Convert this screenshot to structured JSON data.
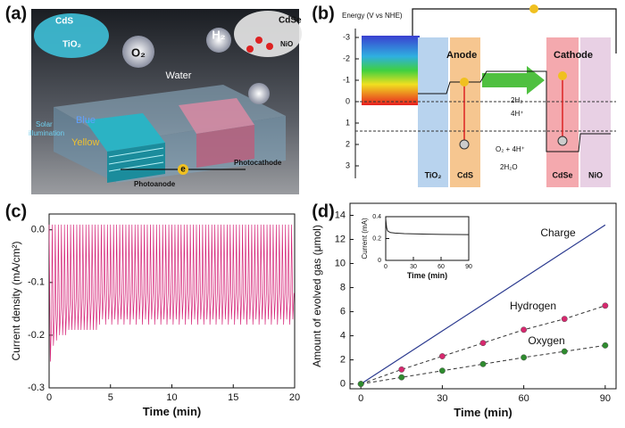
{
  "panel_a": {
    "label": "(a)",
    "cds": "CdS",
    "tio2": "TiO₂",
    "o2": "O₂",
    "h2": "H₂",
    "water": "Water",
    "cdse": "CdSe",
    "nio": "NiO",
    "solar": "Solar",
    "illumination": "illumination",
    "blue": "Blue",
    "yellow": "Yellow",
    "electron": "e",
    "photoanode": "Photoanode",
    "photocathode": "Photocathode"
  },
  "panel_b": {
    "label": "(b)",
    "energy_axis": {
      "label": "Energy (V vs NHE)",
      "ticks": [
        -3,
        -2,
        -1,
        0,
        1,
        2,
        3
      ]
    },
    "anode": "Anode",
    "cathode": "Cathode",
    "h2": "2H₂",
    "h_plus": "4H⁺",
    "o2": "O₂ + 4H⁺",
    "water": "2H₂O",
    "tio2": "TiO₂",
    "cds": "CdS",
    "cdse": "CdSe",
    "nio": "NiO"
  },
  "chart_data": [
    {
      "type": "line",
      "panel_label": "(c)",
      "xlabel": "Time (min)",
      "ylabel": "Current density (mA/cm²)",
      "xlim": [
        0,
        20
      ],
      "ylim": [
        -0.3,
        0.03
      ],
      "xticks": [
        0,
        5,
        10,
        15,
        20
      ],
      "yticks": [
        {
          "value": 0,
          "label": "0.0"
        },
        -0.1,
        -0.2,
        -0.3
      ],
      "x": [
        0,
        0.1,
        0.2,
        0.25,
        0.35,
        0.45,
        0.5,
        0.6,
        0.7,
        0.75,
        0.85,
        0.95,
        1,
        1.1,
        1.2,
        1.25,
        1.35,
        1.45,
        1.5,
        1.6,
        1.7,
        1.75,
        1.85,
        1.95,
        2,
        2.1,
        2.2,
        2.25,
        2.35,
        2.45,
        2.5,
        2.6,
        2.7,
        2.75,
        2.85,
        2.95,
        3,
        3.1,
        3.2,
        3.25,
        3.35,
        3.45,
        3.5,
        3.6,
        3.7,
        3.75,
        3.85,
        3.95,
        4,
        4.1,
        4.2,
        4.25,
        4.35,
        4.45,
        4.5,
        4.6,
        4.7,
        4.75,
        4.85,
        4.95,
        5,
        5.1,
        5.2,
        5.25,
        5.35,
        5.45,
        5.5,
        5.6,
        5.7,
        5.75,
        5.85,
        5.95,
        6,
        6.1,
        6.2,
        6.25,
        6.35,
        6.45,
        6.5,
        6.6,
        6.7,
        6.75,
        6.85,
        6.95,
        7,
        7.1,
        7.2,
        7.25,
        7.35,
        7.45,
        7.5,
        7.6,
        7.7,
        7.75,
        7.85,
        7.95,
        8,
        8.1,
        8.2,
        8.25,
        8.35,
        8.45,
        8.5,
        8.6,
        8.7,
        8.75,
        8.85,
        8.95,
        9,
        9.1,
        9.2,
        9.25,
        9.35,
        9.45,
        9.5,
        9.6,
        9.7,
        9.75,
        9.85,
        9.95,
        10,
        10.1,
        10.2,
        10.25,
        10.35,
        10.45,
        10.5,
        10.6,
        10.7,
        10.75,
        10.85,
        10.95,
        11,
        11.1,
        11.2,
        11.25,
        11.35,
        11.45,
        11.5,
        11.6,
        11.7,
        11.75,
        11.85,
        11.95,
        12,
        12.1,
        12.2,
        12.25,
        12.35,
        12.45,
        12.5,
        12.6,
        12.7,
        12.75,
        12.85,
        12.95,
        13,
        13.1,
        13.2,
        13.25,
        13.35,
        13.45,
        13.5,
        13.6,
        13.7,
        13.75,
        13.85,
        13.95,
        14,
        14.1,
        14.2,
        14.25,
        14.35,
        14.45,
        14.5,
        14.6,
        14.7,
        14.75,
        14.85,
        14.95,
        15,
        15.1,
        15.2,
        15.25,
        15.35,
        15.45,
        15.5,
        15.6,
        15.7,
        15.75,
        15.85,
        15.95,
        16,
        16.1,
        16.2,
        16.25,
        16.35,
        16.45,
        16.5,
        16.6,
        16.7,
        16.75,
        16.85,
        16.95,
        17,
        17.1,
        17.2,
        17.25,
        17.35,
        17.45,
        17.5,
        17.6,
        17.7,
        17.75,
        17.85,
        17.95,
        18,
        18.1,
        18.2,
        18.25,
        18.35,
        18.45,
        18.5,
        18.6,
        18.7,
        18.75,
        18.85,
        18.95,
        19,
        19.1,
        19.2,
        19.25,
        19.35,
        19.45,
        19.5,
        19.6,
        19.7,
        19.75,
        19.85,
        19.95
      ],
      "series": [
        {
          "color": "#d6287a",
          "line_style": "solid",
          "markers": false,
          "values": [
            0.01,
            -0.25,
            -0.17,
            0.01,
            -0.22,
            -0.16,
            0.01,
            -0.21,
            -0.15,
            0.01,
            -0.2,
            -0.15,
            0.01,
            -0.2,
            -0.14,
            0.01,
            -0.2,
            -0.14,
            0.01,
            -0.19,
            -0.14,
            0.01,
            -0.19,
            -0.13,
            0.01,
            -0.19,
            -0.13,
            0.01,
            -0.19,
            -0.13,
            0.01,
            -0.19,
            -0.13,
            0.01,
            -0.19,
            -0.13,
            0.01,
            -0.19,
            -0.13,
            0.01,
            -0.19,
            -0.13,
            0.01,
            -0.19,
            -0.13,
            0.01,
            -0.19,
            -0.13,
            0.01,
            -0.18,
            -0.12,
            0.01,
            -0.17,
            -0.12,
            0.01,
            -0.18,
            -0.12,
            0.01,
            -0.17,
            -0.12,
            0.01,
            -0.18,
            -0.12,
            0.01,
            -0.17,
            -0.12,
            0.01,
            -0.18,
            -0.12,
            0.01,
            -0.17,
            -0.12,
            0.01,
            -0.18,
            -0.12,
            0.01,
            -0.17,
            -0.12,
            0.01,
            -0.18,
            -0.12,
            0.01,
            -0.17,
            -0.12,
            0.01,
            -0.18,
            -0.12,
            0.01,
            -0.17,
            -0.12,
            0.01,
            -0.18,
            -0.12,
            0.01,
            -0.17,
            -0.12,
            0.01,
            -0.18,
            -0.12,
            0.01,
            -0.17,
            -0.12,
            0.01,
            -0.18,
            -0.12,
            0.01,
            -0.17,
            -0.12,
            0.01,
            -0.18,
            -0.12,
            0.01,
            -0.17,
            -0.12,
            0.01,
            -0.18,
            -0.12,
            0.01,
            -0.17,
            -0.12,
            0.01,
            -0.18,
            -0.12,
            0.01,
            -0.17,
            -0.12,
            0.01,
            -0.18,
            -0.12,
            0.01,
            -0.17,
            -0.12,
            0.01,
            -0.18,
            -0.12,
            0.01,
            -0.17,
            -0.12,
            0.01,
            -0.18,
            -0.12,
            0.01,
            -0.17,
            -0.12,
            0.01,
            -0.18,
            -0.12,
            0.01,
            -0.17,
            -0.12,
            0.01,
            -0.18,
            -0.12,
            0.01,
            -0.17,
            -0.12,
            0.01,
            -0.18,
            -0.12,
            0.01,
            -0.17,
            -0.12,
            0.01,
            -0.18,
            -0.12,
            0.01,
            -0.17,
            -0.12,
            0.01,
            -0.18,
            -0.12,
            0.01,
            -0.17,
            -0.12,
            0.01,
            -0.18,
            -0.12,
            0.01,
            -0.17,
            -0.12,
            0.01,
            -0.18,
            -0.12,
            0.01,
            -0.17,
            -0.12,
            0.01,
            -0.18,
            -0.12,
            0.01,
            -0.17,
            -0.12,
            0.01,
            -0.18,
            -0.12,
            0.01,
            -0.17,
            -0.12,
            0.01,
            -0.18,
            -0.12,
            0.01,
            -0.17,
            -0.12,
            0.01,
            -0.18,
            -0.12,
            0.01,
            -0.17,
            -0.12,
            0.01,
            -0.18,
            -0.12,
            0.01,
            -0.17,
            -0.12,
            0.01,
            -0.18,
            -0.12,
            0.01,
            -0.17,
            -0.12,
            0.01,
            -0.18,
            -0.12,
            0.01,
            -0.17,
            -0.12,
            0.01,
            -0.18,
            -0.12,
            0.01,
            -0.17,
            -0.12,
            0.01,
            -0.18,
            -0.12,
            0.01,
            -0.17,
            -0.12
          ]
        }
      ]
    },
    {
      "type": "line",
      "panel_label": "(d)",
      "xlabel": "Time (min)",
      "ylabel": "Amount of evolved gas (μmol)",
      "xlim": [
        -4,
        94
      ],
      "ylim": [
        -0.4,
        15
      ],
      "xticks": [
        0,
        30,
        60,
        90
      ],
      "yticks": [
        0,
        2,
        4,
        6,
        8,
        10,
        12,
        14
      ],
      "x": [
        0,
        15,
        30,
        45,
        60,
        75,
        90
      ],
      "series": [
        {
          "name": "Charge",
          "color": "#2b3a8f",
          "line_style": "solid",
          "markers": false,
          "values": [
            0,
            2.2,
            4.4,
            6.6,
            8.8,
            11.0,
            13.2
          ]
        },
        {
          "name": "Hydrogen",
          "color": "#d6286e",
          "line_style": "dashed",
          "markers": true,
          "values": [
            0,
            1.2,
            2.3,
            3.4,
            4.5,
            5.4,
            6.5
          ]
        },
        {
          "name": "Oxygen",
          "color": "#2e8b2e",
          "line_style": "dashed",
          "markers": true,
          "values": [
            0,
            0.55,
            1.1,
            1.65,
            2.2,
            2.7,
            3.2
          ]
        }
      ]
    },
    {
      "type": "line",
      "xlabel": "Time (min)",
      "ylabel": "Current (mA)",
      "xlim": [
        0,
        90
      ],
      "ylim": [
        0,
        0.4
      ],
      "xticks": [
        0,
        30,
        60,
        90
      ],
      "yticks": [
        0,
        0.2,
        0.4
      ],
      "x": [
        0,
        1,
        2,
        5,
        10,
        20,
        30,
        45,
        60,
        75,
        90
      ],
      "series": [
        {
          "color": "#222222",
          "line_style": "solid",
          "markers": false,
          "values": [
            0.38,
            0.3,
            0.27,
            0.255,
            0.25,
            0.245,
            0.243,
            0.24,
            0.238,
            0.237,
            0.236
          ]
        }
      ]
    }
  ]
}
